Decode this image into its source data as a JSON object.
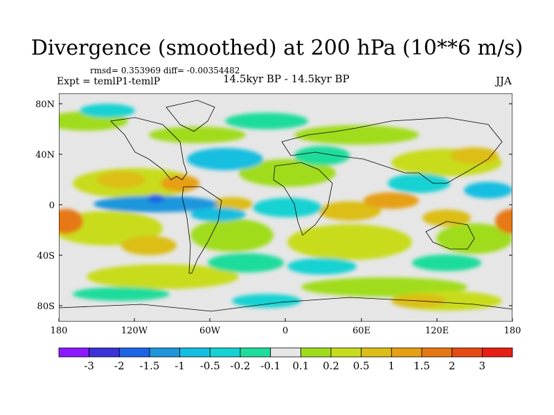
{
  "title": "Divergence (smoothed) at 200 hPa (10**6 m/s)",
  "stats": "rmsd= 0.353969 diff= -0.00354482",
  "experiment": "Expt = temlP1-temlP",
  "period": "14.5kyr BP - 14.5kyr BP",
  "season": "JJA",
  "lat_labels": [
    "80N",
    "40N",
    "0",
    "40S",
    "80S"
  ],
  "lon_labels": [
    "180",
    "120W",
    "60W",
    "0",
    "60E",
    "120E",
    "180"
  ],
  "colorbar": {
    "colors": [
      "#8c1aff",
      "#3c32d9",
      "#1e64e6",
      "#1e96dc",
      "#14bee0",
      "#14d2d2",
      "#1edc9b",
      "#e6e6e6",
      "#a0dc1e",
      "#c8dc1e",
      "#dcbe14",
      "#e6a014",
      "#e67814",
      "#e64b14",
      "#e61e14"
    ],
    "labels": [
      "-3",
      "-2",
      "-1.5",
      "-1",
      "-0.5",
      "-0.2",
      "-0.1",
      "0.1",
      "0.2",
      "0.5",
      "1",
      "1.5",
      "2",
      "3"
    ]
  }
}
